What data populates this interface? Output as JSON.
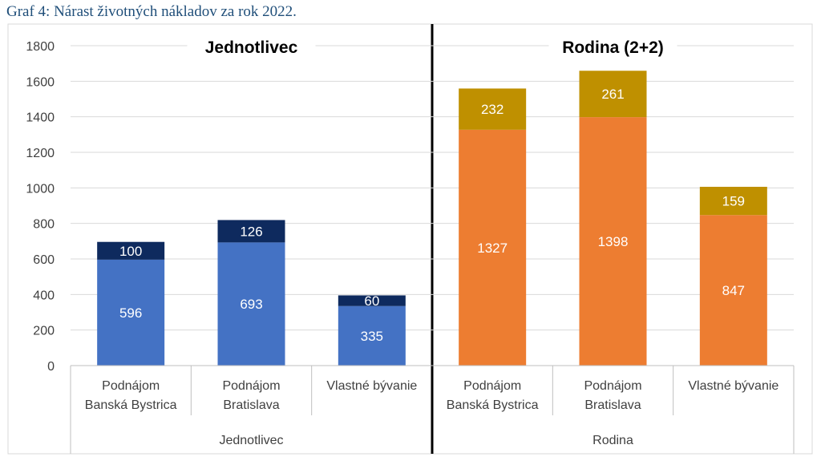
{
  "caption": "Graf 4: Nárast životných nákladov za rok 2022.",
  "chart_data": {
    "type": "bar",
    "stacked": true,
    "ylim": [
      0,
      1800
    ],
    "yticks": [
      0,
      200,
      400,
      600,
      800,
      1000,
      1200,
      1400,
      1600,
      1800
    ],
    "grid": true,
    "panels": [
      {
        "title": "Jednotlivec",
        "group_label": "Jednotlivec",
        "colors": {
          "base": "#4472c4",
          "top": "#0e2a5e"
        },
        "categories": [
          [
            "Podnájom",
            "Banská Bystrica"
          ],
          [
            "Podnájom",
            "Bratislava"
          ],
          [
            "Vlastné bývanie"
          ]
        ],
        "base_values": [
          596,
          693,
          335
        ],
        "top_values": [
          100,
          126,
          60
        ]
      },
      {
        "title": "Rodina (2+2)",
        "group_label": "Rodina",
        "colors": {
          "base": "#ed7d31",
          "top": "#bf9000"
        },
        "categories": [
          [
            "Podnájom",
            "Banská Bystrica"
          ],
          [
            "Podnájom",
            "Bratislava"
          ],
          [
            "Vlastné bývanie"
          ]
        ],
        "base_values": [
          1327,
          1398,
          847
        ],
        "top_values": [
          232,
          261,
          159
        ]
      }
    ]
  }
}
